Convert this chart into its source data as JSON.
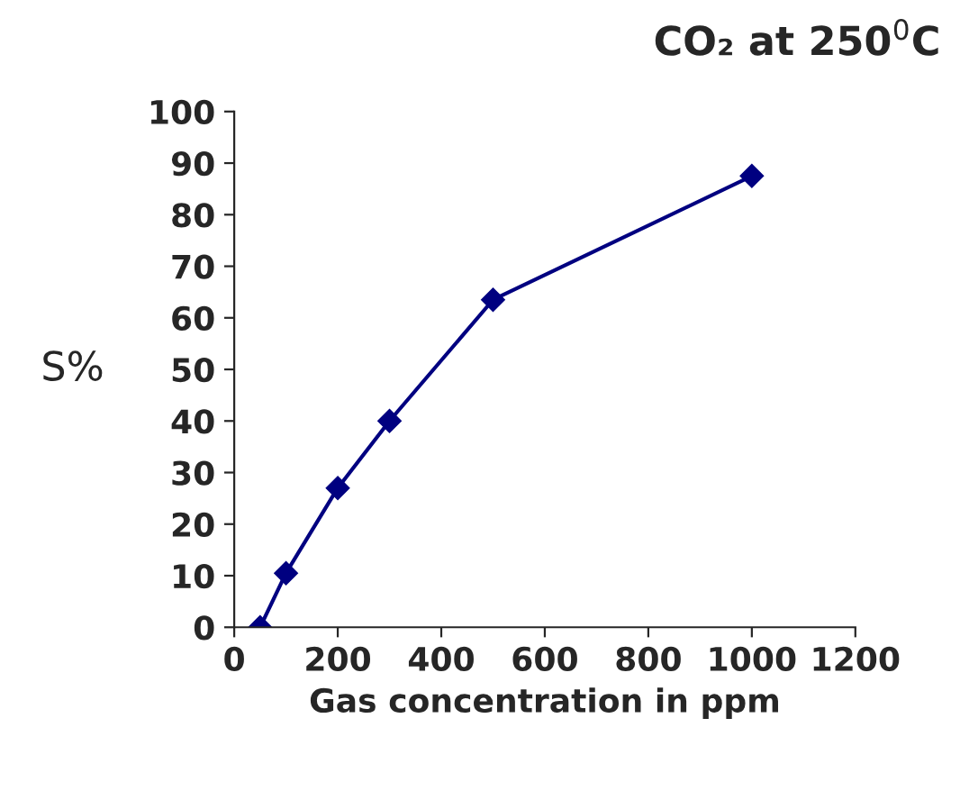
{
  "chart_data": {
    "type": "line",
    "title": "CO₂ at 250$^{0}$C",
    "xlabel": "Gas concentration in ppm",
    "ylabel": "S%",
    "x": [
      50,
      100,
      200,
      300,
      500,
      1000
    ],
    "series": [
      {
        "color": "#000080",
        "values": [
          0,
          10.5,
          27,
          40,
          63.5,
          87.5
        ]
      }
    ],
    "xlim": [
      0,
      1200
    ],
    "xticks": [
      0,
      200,
      400,
      600,
      800,
      1000,
      1200
    ],
    "ylim": [
      0,
      100
    ],
    "yticks": [
      0,
      10,
      20,
      30,
      40,
      50,
      60,
      70,
      80,
      90,
      100
    ],
    "grid": false,
    "legend": false,
    "marker": "diamond",
    "line_style": "solid"
  }
}
